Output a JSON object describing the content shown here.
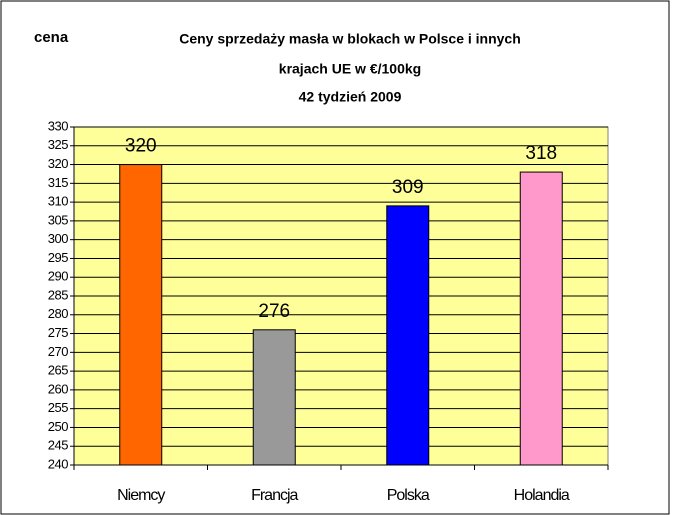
{
  "chart_data": {
    "type": "bar",
    "title_lines": [
      "Ceny sprzedaży masła w blokach w Polsce i  innych",
      "krajach UE w €/100kg",
      "42 tydzień 2009"
    ],
    "y_label": "cena",
    "categories": [
      "Niemcy",
      "Francja",
      "Polska",
      "Holandia"
    ],
    "values": [
      320,
      276,
      309,
      318
    ],
    "colors": [
      "#ff6600",
      "#999999",
      "#0000ff",
      "#ff99cc"
    ],
    "ylim": [
      240,
      330
    ],
    "yticks": [
      240,
      245,
      250,
      255,
      260,
      265,
      270,
      275,
      280,
      285,
      290,
      295,
      300,
      305,
      310,
      315,
      320,
      325,
      330
    ],
    "grid": true,
    "background": "#ffff99"
  }
}
